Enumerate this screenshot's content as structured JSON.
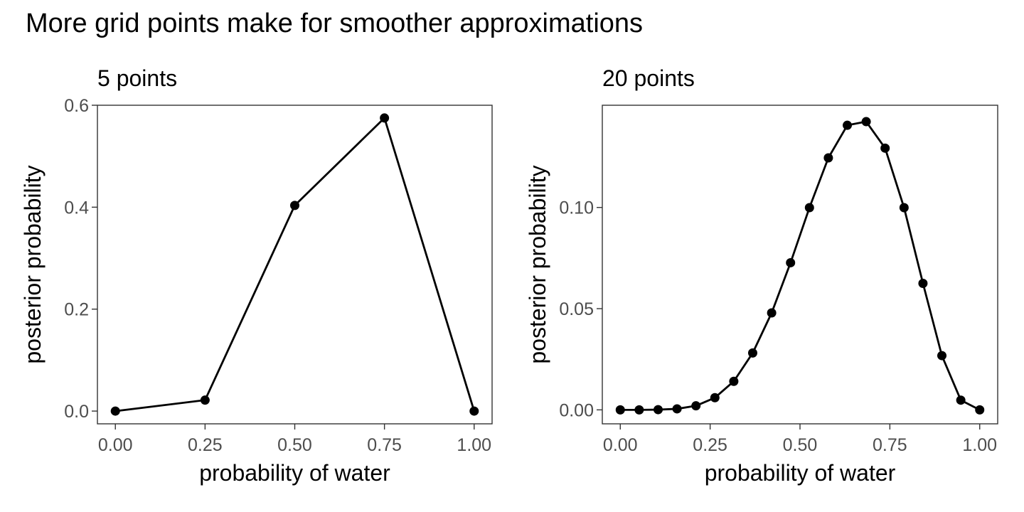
{
  "figure": {
    "title": "More grid points make for smoother approximations"
  },
  "chart_data": [
    {
      "type": "line",
      "title": "5 points",
      "xlabel": "probability of water",
      "ylabel": "posterior probability",
      "xlim": [
        -0.05,
        1.05
      ],
      "ylim": [
        -0.025,
        0.6
      ],
      "xticks": [
        0,
        0.25,
        0.5,
        0.75,
        1
      ],
      "xtick_labels": [
        "0.00",
        "0.25",
        "0.50",
        "0.75",
        "1.00"
      ],
      "yticks": [
        0,
        0.2,
        0.4,
        0.6
      ],
      "ytick_labels": [
        "0.0",
        "0.2",
        "0.4",
        "0.6"
      ],
      "grid": false,
      "markers": true,
      "color": "#000000",
      "x": [
        0,
        0.25,
        0.5,
        0.75,
        1
      ],
      "y": [
        0,
        0.0215,
        0.4035,
        0.575,
        0
      ]
    },
    {
      "type": "line",
      "title": "20 points",
      "xlabel": "probability of water",
      "ylabel": "posterior probability",
      "xlim": [
        -0.05,
        1.05
      ],
      "ylim": [
        -0.0069,
        0.1505
      ],
      "xticks": [
        0,
        0.25,
        0.5,
        0.75,
        1
      ],
      "xtick_labels": [
        "0.00",
        "0.25",
        "0.50",
        "0.75",
        "1.00"
      ],
      "yticks": [
        0,
        0.05,
        0.1
      ],
      "ytick_labels": [
        "0.00",
        "0.05",
        "0.10"
      ],
      "grid": false,
      "markers": true,
      "color": "#000000",
      "x": [
        0,
        0.0526,
        0.1053,
        0.1579,
        0.2105,
        0.2632,
        0.3158,
        0.3684,
        0.4211,
        0.4737,
        0.5263,
        0.5789,
        0.6316,
        0.6842,
        0.7368,
        0.7895,
        0.8421,
        0.8947,
        0.9474,
        1
      ],
      "y": [
        0,
        0.0,
        0.0001,
        0.0005,
        0.002,
        0.006,
        0.0141,
        0.0281,
        0.0479,
        0.0727,
        0.0999,
        0.1245,
        0.1406,
        0.1424,
        0.1293,
        0.0999,
        0.0625,
        0.0268,
        0.0048,
        0
      ]
    }
  ]
}
